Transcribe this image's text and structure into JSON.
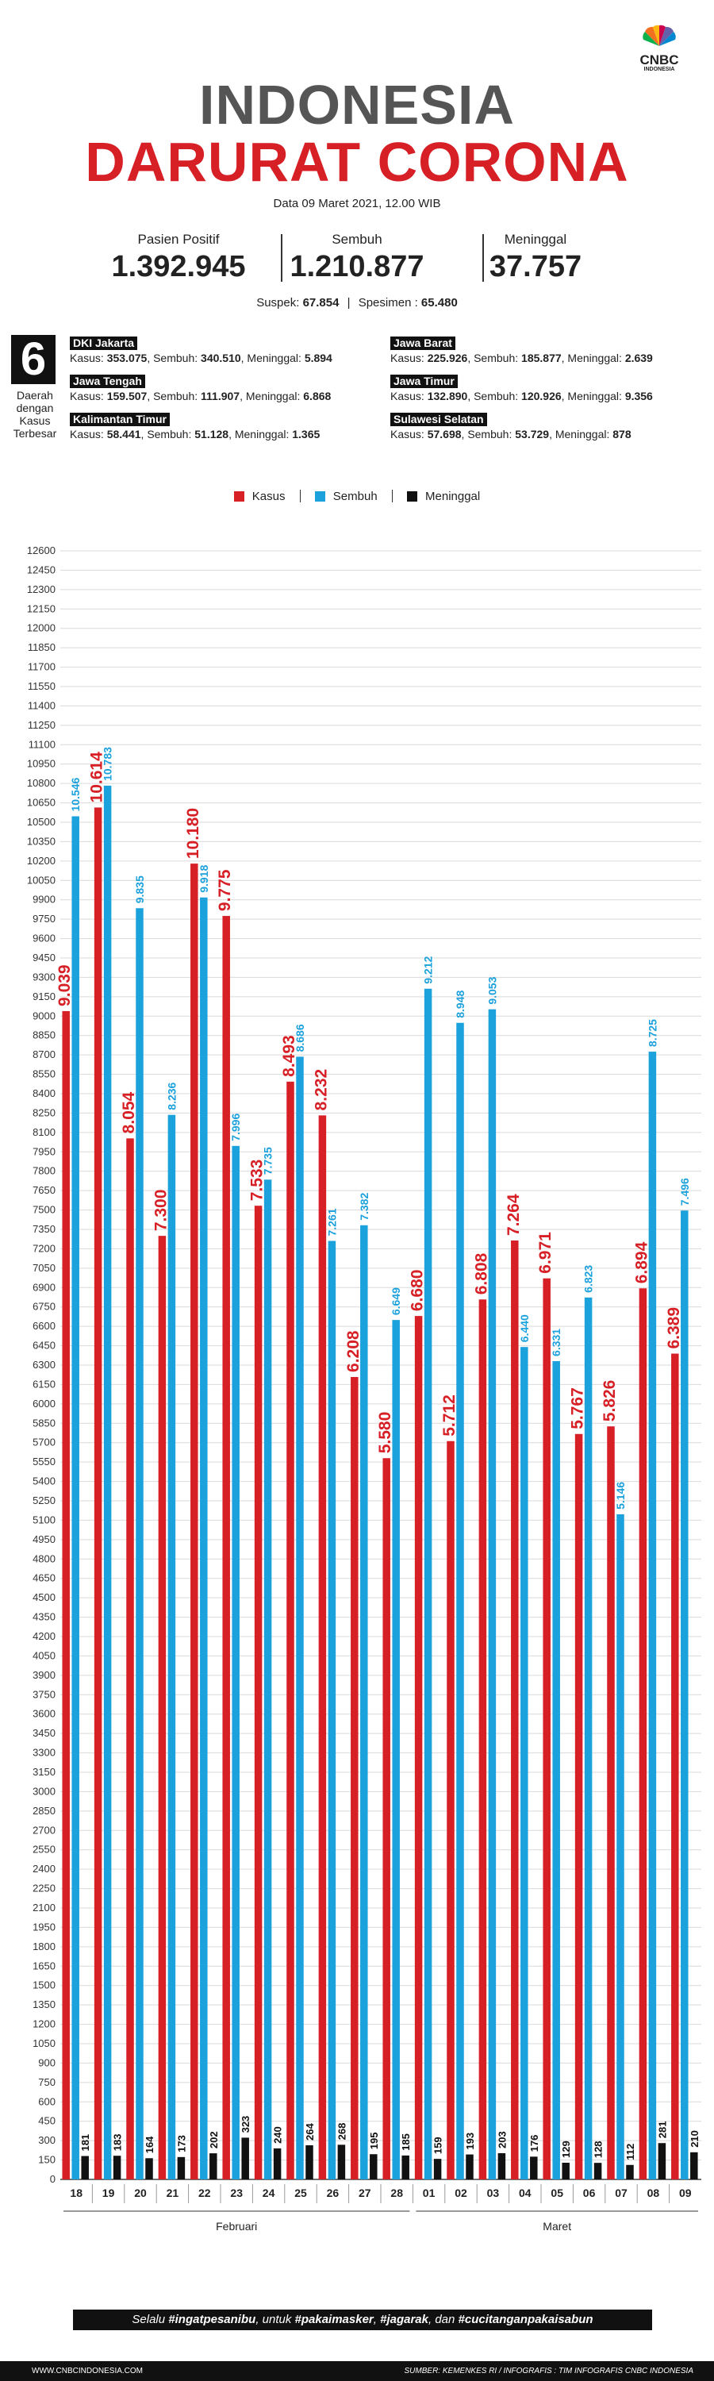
{
  "logo": {
    "brand": "CNBC",
    "sub": "INDONESIA"
  },
  "title_line1": "INDONESIA",
  "title_line2": "DARURAT CORONA",
  "dateline": "Data 09 Maret 2021, 12.00 WIB",
  "stats": [
    {
      "label": "Pasien Positif",
      "value": "1.392.945"
    },
    {
      "label": "Sembuh",
      "value": "1.210.877"
    },
    {
      "label": "Meninggal",
      "value": "37.757"
    }
  ],
  "suspek": {
    "label": "Suspek:",
    "value": "67.854",
    "sep": "|",
    "label2": "Spesimen :",
    "value2": "65.480"
  },
  "regions_header": {
    "number": "6",
    "label": "Daerah dengan Kasus Terbesar"
  },
  "regions": [
    {
      "name": "DKI Jakarta",
      "kasus": "353.075",
      "sembuh": "340.510",
      "meninggal": "5.894"
    },
    {
      "name": "Jawa Barat",
      "kasus": "225.926",
      "sembuh": "185.877",
      "meninggal": "2.639"
    },
    {
      "name": "Jawa Tengah",
      "kasus": "159.507",
      "sembuh": "111.907",
      "meninggal": "6.868"
    },
    {
      "name": "Jawa Timur",
      "kasus": "132.890",
      "sembuh": "120.926",
      "meninggal": "9.356"
    },
    {
      "name": "Kalimantan Timur",
      "kasus": "58.441",
      "sembuh": "51.128",
      "meninggal": "1.365"
    },
    {
      "name": "Sulawesi Selatan",
      "kasus": "57.698",
      "sembuh": "53.729",
      "meninggal": "878"
    }
  ],
  "region_labels": {
    "kasus": "Kasus:",
    "sembuh": "Sembuh:",
    "meninggal": "Meninggal:"
  },
  "legend": [
    {
      "label": "Kasus",
      "color": "#d71f26"
    },
    {
      "label": "Sembuh",
      "color": "#1ba1dc"
    },
    {
      "label": "Meninggal",
      "color": "#111111"
    }
  ],
  "chart_data": {
    "type": "bar",
    "categories": [
      "18",
      "19",
      "20",
      "21",
      "22",
      "23",
      "24",
      "25",
      "26",
      "27",
      "28",
      "01",
      "02",
      "03",
      "04",
      "05",
      "06",
      "07",
      "08",
      "09"
    ],
    "groups": [
      {
        "label": "Februari",
        "from": 0,
        "to": 10
      },
      {
        "label": "Maret",
        "from": 11,
        "to": 19
      }
    ],
    "ylim": [
      0,
      12600
    ],
    "ytick_step": 150,
    "grid": true,
    "series": [
      {
        "name": "Kasus",
        "color": "#d71f26",
        "values": [
          9039,
          10614,
          8054,
          7300,
          10180,
          9775,
          7533,
          8493,
          8232,
          6208,
          5580,
          6680,
          5712,
          6808,
          7264,
          6971,
          5767,
          5826,
          6894,
          6389
        ]
      },
      {
        "name": "Sembuh",
        "color": "#1ba1dc",
        "values": [
          10546,
          10783,
          9835,
          8236,
          9918,
          7996,
          7735,
          8686,
          7261,
          7382,
          6649,
          9212,
          8948,
          9053,
          6440,
          6331,
          6823,
          5146,
          8725,
          7496
        ]
      },
      {
        "name": "Meninggal",
        "color": "#111111",
        "values": [
          181,
          183,
          164,
          173,
          202,
          323,
          240,
          264,
          268,
          195,
          185,
          159,
          193,
          203,
          176,
          129,
          128,
          112,
          281,
          210
        ]
      }
    ]
  },
  "slogan": {
    "pre": "Selalu ",
    "t1": "#ingatpesanibu",
    "m1": ", untuk ",
    "t2": "#pakaimasker",
    "m2": ", ",
    "t3": "#jagarak",
    "m3": ", dan ",
    "t4": "#cucitanganpakaisabun"
  },
  "footer": {
    "left": "WWW.CNBCINDONESIA.COM",
    "right": "SUMBER: KEMENKES RI / INFOGRAFIS : TIM INFOGRAFIS CNBC INDONESIA"
  }
}
